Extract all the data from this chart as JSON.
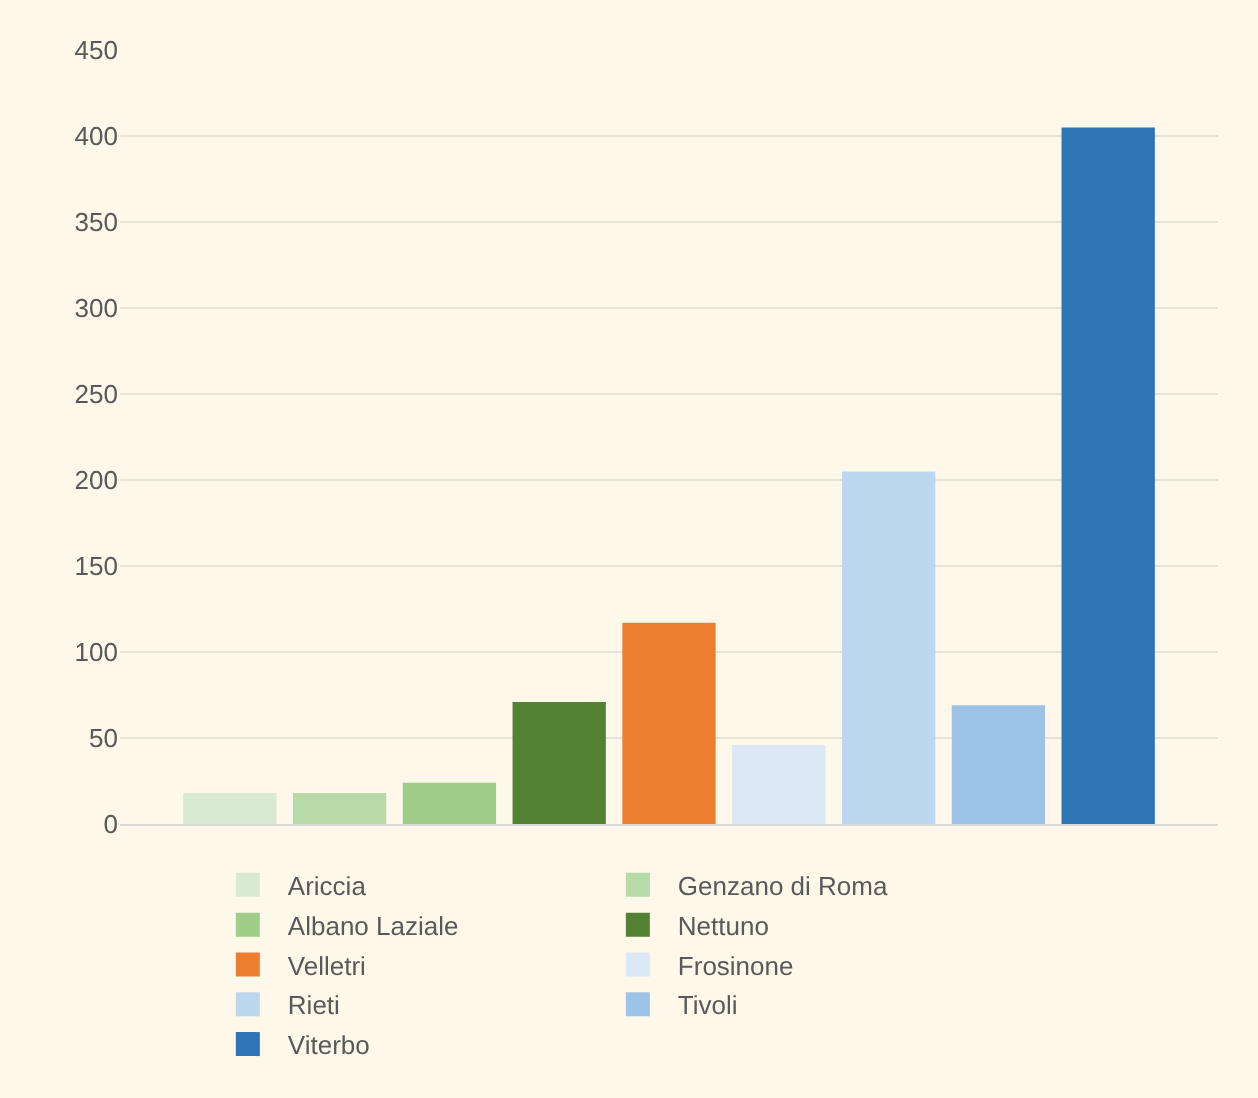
{
  "chart_data": {
    "type": "bar",
    "categories": [
      null
    ],
    "series": [
      {
        "name": "Ariccia",
        "color": "#d9ead3",
        "values": [
          18
        ]
      },
      {
        "name": "Genzano di Roma",
        "color": "#b7dba8",
        "values": [
          18
        ]
      },
      {
        "name": "Albano Laziale",
        "color": "#a0cd87",
        "values": [
          24
        ]
      },
      {
        "name": "Nettuno",
        "color": "#548235",
        "values": [
          71
        ]
      },
      {
        "name": "Velletri",
        "color": "#ed7d31",
        "values": [
          117
        ]
      },
      {
        "name": "Frosinone",
        "color": "#dce8f5",
        "values": [
          46
        ]
      },
      {
        "name": "Rieti",
        "color": "#bdd7ee",
        "values": [
          205
        ]
      },
      {
        "name": "Tivoli",
        "color": "#9dc3e6",
        "values": [
          69
        ]
      },
      {
        "name": "Viterbo",
        "color": "#2e75b6",
        "values": [
          405
        ]
      }
    ],
    "ylim": [
      0,
      450
    ],
    "yticks": [
      0,
      50,
      100,
      150,
      200,
      250,
      300,
      350,
      400,
      450
    ],
    "grid": "y",
    "legend": "bottom"
  }
}
